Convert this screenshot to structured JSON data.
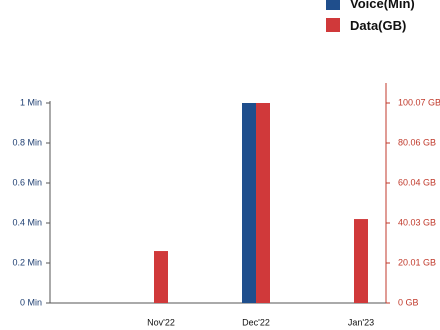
{
  "chart_data": {
    "type": "bar",
    "categories": [
      "Nov'22",
      "Dec'22",
      "Jan'23"
    ],
    "series": [
      {
        "name": "Voice(Min)",
        "axis": "left",
        "color": "#1f4e8c",
        "values": [
          0,
          1.0,
          0
        ]
      },
      {
        "name": "Data(GB)",
        "axis": "right",
        "color": "#d0393a",
        "values": [
          26,
          100.07,
          42
        ]
      }
    ],
    "left_axis": {
      "ticks": [
        "0 Min",
        "0.2 Min",
        "0.4 Min",
        "0.6 Min",
        "0.8 Min",
        "1 Min"
      ],
      "ylim": [
        0,
        1.0
      ]
    },
    "right_axis": {
      "ticks": [
        "0 GB",
        "20.01 GB",
        "40.03 GB",
        "60.04 GB",
        "80.06 GB",
        "100.07 GB"
      ],
      "ylim": [
        0,
        100.07
      ]
    },
    "legend_placement": "top-right"
  }
}
